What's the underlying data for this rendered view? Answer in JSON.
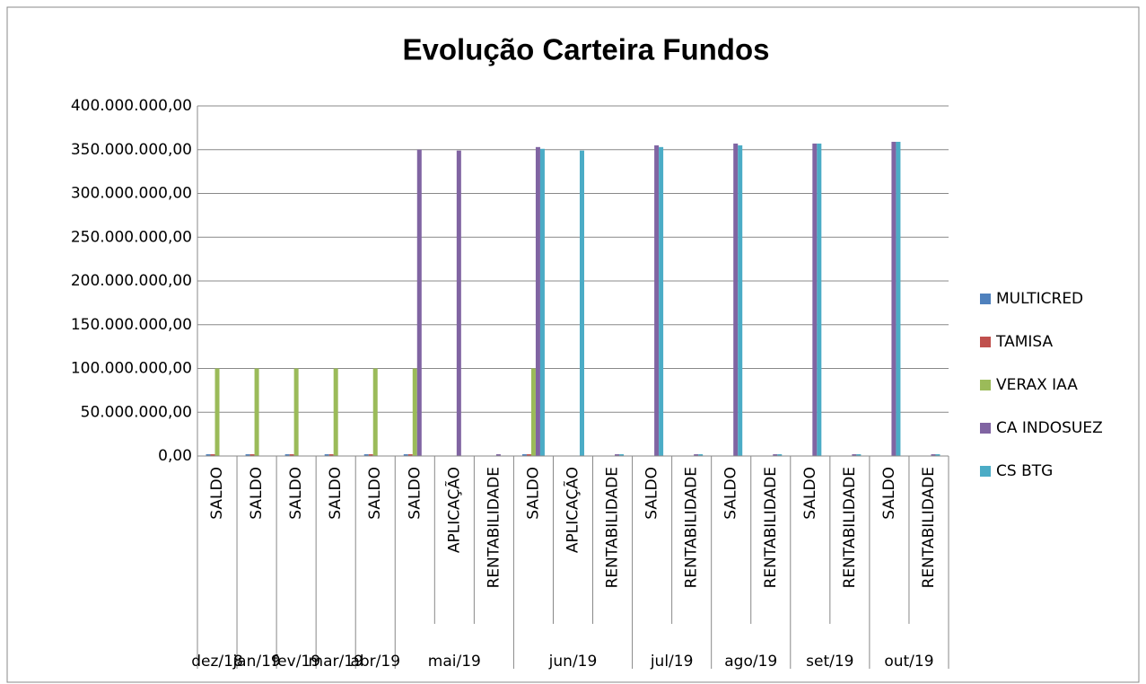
{
  "chart_data": {
    "type": "bar",
    "title": "Evolução Carteira Fundos",
    "groups": [
      {
        "name": "dez/18",
        "categories": [
          "SALDO"
        ]
      },
      {
        "name": "jan/19",
        "categories": [
          "SALDO"
        ]
      },
      {
        "name": "fev/19",
        "categories": [
          "SALDO"
        ]
      },
      {
        "name": "mar/19",
        "categories": [
          "SALDO"
        ]
      },
      {
        "name": "abr/19",
        "categories": [
          "SALDO"
        ]
      },
      {
        "name": "mai/19",
        "categories": [
          "SALDO",
          "APLICAÇÃO",
          "RENTABILIDADE"
        ]
      },
      {
        "name": "jun/19",
        "categories": [
          "SALDO",
          "APLICAÇÃO",
          "RENTABILIDADE"
        ]
      },
      {
        "name": "jul/19",
        "categories": [
          "SALDO",
          "RENTABILIDADE"
        ]
      },
      {
        "name": "ago/19",
        "categories": [
          "SALDO",
          "RENTABILIDADE"
        ]
      },
      {
        "name": "set/19",
        "categories": [
          "SALDO",
          "RENTABILIDADE"
        ]
      },
      {
        "name": "out/19",
        "categories": [
          "SALDO",
          "RENTABILIDADE"
        ]
      }
    ],
    "series": [
      {
        "name": "MULTICRED",
        "color": "#4f81bd",
        "values": [
          2000000,
          2000000,
          2000000,
          2000000,
          2000000,
          2000000,
          null,
          null,
          2000000,
          null,
          null,
          null,
          null,
          null,
          null,
          null,
          null,
          null,
          null
        ]
      },
      {
        "name": "TAMISA",
        "color": "#c0504d",
        "values": [
          2000000,
          2000000,
          2000000,
          2000000,
          2000000,
          2000000,
          null,
          null,
          2000000,
          null,
          null,
          null,
          null,
          null,
          null,
          null,
          null,
          null,
          null
        ]
      },
      {
        "name": "VERAX IAA",
        "color": "#9bbb59",
        "values": [
          100000000,
          100000000,
          100000000,
          100000000,
          100000000,
          100000000,
          null,
          null,
          100000000,
          null,
          null,
          null,
          null,
          null,
          null,
          null,
          null,
          null,
          null
        ]
      },
      {
        "name": "CA INDOSUEZ",
        "color": "#8064a2",
        "values": [
          null,
          null,
          null,
          null,
          null,
          350000000,
          349000000,
          2000000,
          353000000,
          null,
          2000000,
          355000000,
          2000000,
          357000000,
          2000000,
          357000000,
          2000000,
          359000000,
          2000000
        ]
      },
      {
        "name": "CS BTG",
        "color": "#4bacc6",
        "values": [
          null,
          null,
          null,
          null,
          null,
          null,
          null,
          null,
          351000000,
          349000000,
          2000000,
          353000000,
          2000000,
          355000000,
          2000000,
          357000000,
          2000000,
          359000000,
          2000000
        ]
      }
    ],
    "ylim": [
      0,
      400000000
    ],
    "yticks": [
      {
        "value": 0,
        "label": "0,00"
      },
      {
        "value": 50000000,
        "label": "50.000.000,00"
      },
      {
        "value": 100000000,
        "label": "100.000.000,00"
      },
      {
        "value": 150000000,
        "label": "150.000.000,00"
      },
      {
        "value": 200000000,
        "label": "200.000.000,00"
      },
      {
        "value": 250000000,
        "label": "250.000.000,00"
      },
      {
        "value": 300000000,
        "label": "300.000.000,00"
      },
      {
        "value": 350000000,
        "label": "350.000.000,00"
      },
      {
        "value": 400000000,
        "label": "400.000.000,00"
      }
    ],
    "grid": true,
    "legend": "right"
  }
}
